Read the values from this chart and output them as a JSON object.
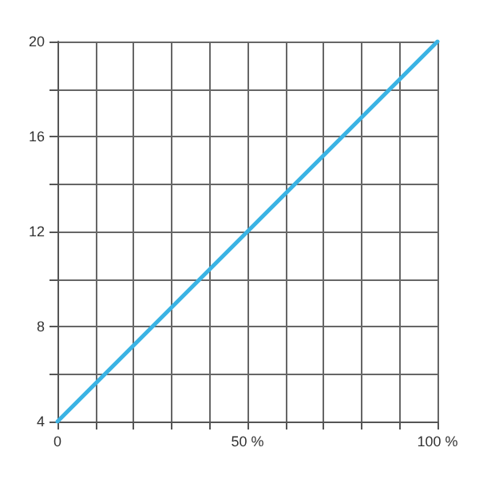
{
  "chart_data": {
    "type": "line",
    "x": [
      0,
      100
    ],
    "series": [
      {
        "color": "#3ab3e4",
        "values": [
          4,
          20
        ]
      }
    ],
    "xlim": [
      0,
      100
    ],
    "ylim": [
      4,
      20
    ],
    "xticks": [
      {
        "value": 0,
        "label": "0"
      },
      {
        "value": 10,
        "label": null
      },
      {
        "value": 20,
        "label": null
      },
      {
        "value": 30,
        "label": null
      },
      {
        "value": 40,
        "label": null
      },
      {
        "value": 50,
        "label": "50 %"
      },
      {
        "value": 60,
        "label": null
      },
      {
        "value": 70,
        "label": null
      },
      {
        "value": 80,
        "label": null
      },
      {
        "value": 90,
        "label": null
      },
      {
        "value": 100,
        "label": "100 %"
      }
    ],
    "yticks": [
      4,
      {
        "value": 6,
        "label": null
      },
      8,
      {
        "value": 10,
        "label": null
      },
      12,
      {
        "value": 14,
        "label": null
      },
      16,
      {
        "value": 18,
        "label": null
      },
      20
    ],
    "grid": true,
    "marker": "none",
    "line_style": "solid"
  }
}
